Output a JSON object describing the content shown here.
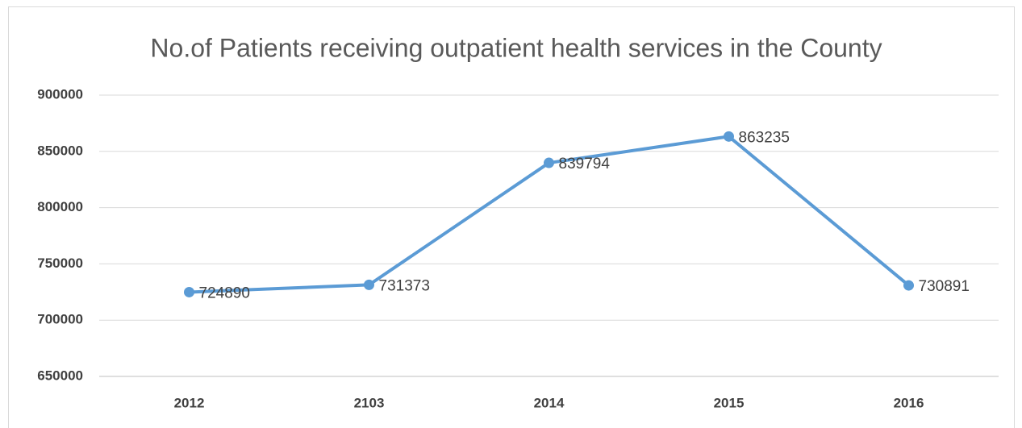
{
  "chart_data": {
    "type": "line",
    "title": "No.of Patients receiving outpatient health services in the County",
    "categories": [
      "2012",
      "2103",
      "2014",
      "2015",
      "2016"
    ],
    "values": [
      724890,
      731373,
      839794,
      863235,
      730891
    ],
    "color": "#5b9bd5",
    "ylim": [
      650000,
      900000
    ],
    "yticks": [
      650000,
      700000,
      750000,
      800000,
      850000,
      900000
    ],
    "grid": true,
    "data_labels": true
  }
}
